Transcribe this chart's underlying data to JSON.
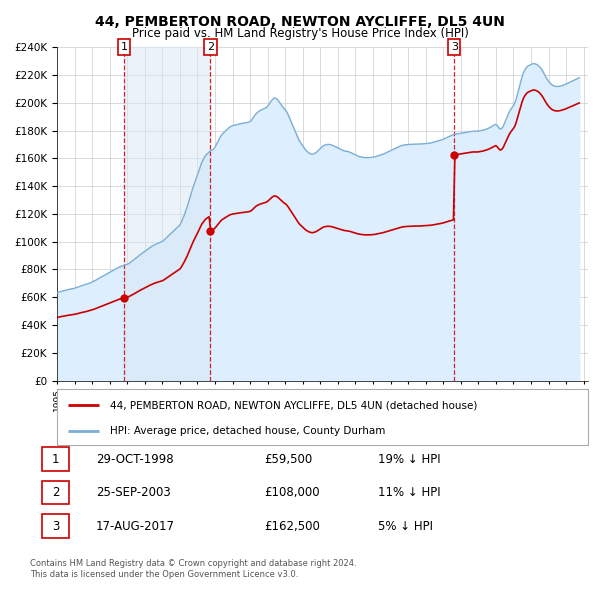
{
  "title": "44, PEMBERTON ROAD, NEWTON AYCLIFFE, DL5 4UN",
  "subtitle": "Price paid vs. HM Land Registry's House Price Index (HPI)",
  "legend_line1": "44, PEMBERTON ROAD, NEWTON AYCLIFFE, DL5 4UN (detached house)",
  "legend_line2": "HPI: Average price, detached house, County Durham",
  "sale_color": "#cc0000",
  "hpi_color": "#7bafd4",
  "hpi_fill_color": "#ddeeff",
  "background_color": "#ffffff",
  "footnote": "Contains HM Land Registry data © Crown copyright and database right 2024.\nThis data is licensed under the Open Government Licence v3.0.",
  "sales": [
    {
      "date": "1998-10-29",
      "price": 59500,
      "label": "1"
    },
    {
      "date": "2003-09-25",
      "price": 108000,
      "label": "2"
    },
    {
      "date": "2017-08-17",
      "price": 162500,
      "label": "3"
    }
  ],
  "table_rows": [
    {
      "num": "1",
      "date": "29-OCT-1998",
      "price": "£59,500",
      "pct": "19% ↓ HPI"
    },
    {
      "num": "2",
      "date": "25-SEP-2003",
      "price": "£108,000",
      "pct": "11% ↓ HPI"
    },
    {
      "num": "3",
      "date": "17-AUG-2017",
      "price": "£162,500",
      "pct": "5% ↓ HPI"
    }
  ],
  "ylim": [
    0,
    240000
  ],
  "yticks": [
    0,
    20000,
    40000,
    60000,
    80000,
    100000,
    120000,
    140000,
    160000,
    180000,
    200000,
    220000,
    240000
  ]
}
